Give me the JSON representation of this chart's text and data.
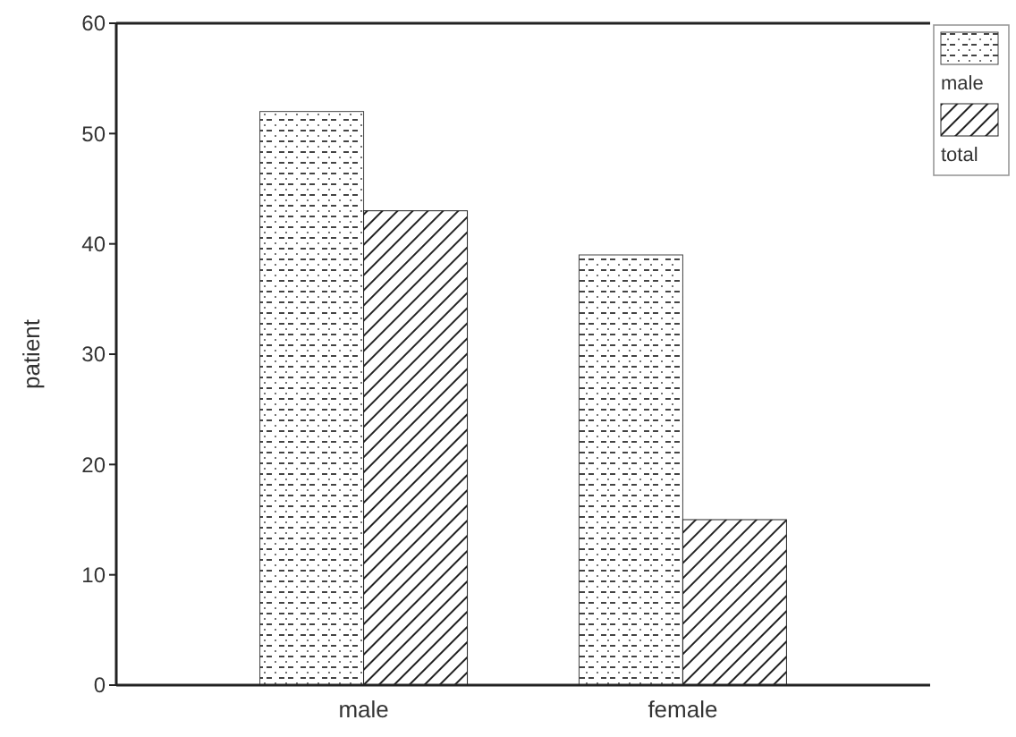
{
  "chart_data": {
    "type": "bar",
    "categories": [
      "male",
      "female"
    ],
    "ylabel": "patient",
    "ylim": [
      0,
      60
    ],
    "yticks": [
      0,
      10,
      20,
      30,
      40,
      50,
      60
    ],
    "legend": "top right",
    "grid": false,
    "series": [
      {
        "name": "male",
        "color": "#444444",
        "values": [
          52,
          39
        ]
      },
      {
        "name": "total",
        "color": "#222222",
        "values": [
          43,
          15
        ]
      }
    ]
  }
}
